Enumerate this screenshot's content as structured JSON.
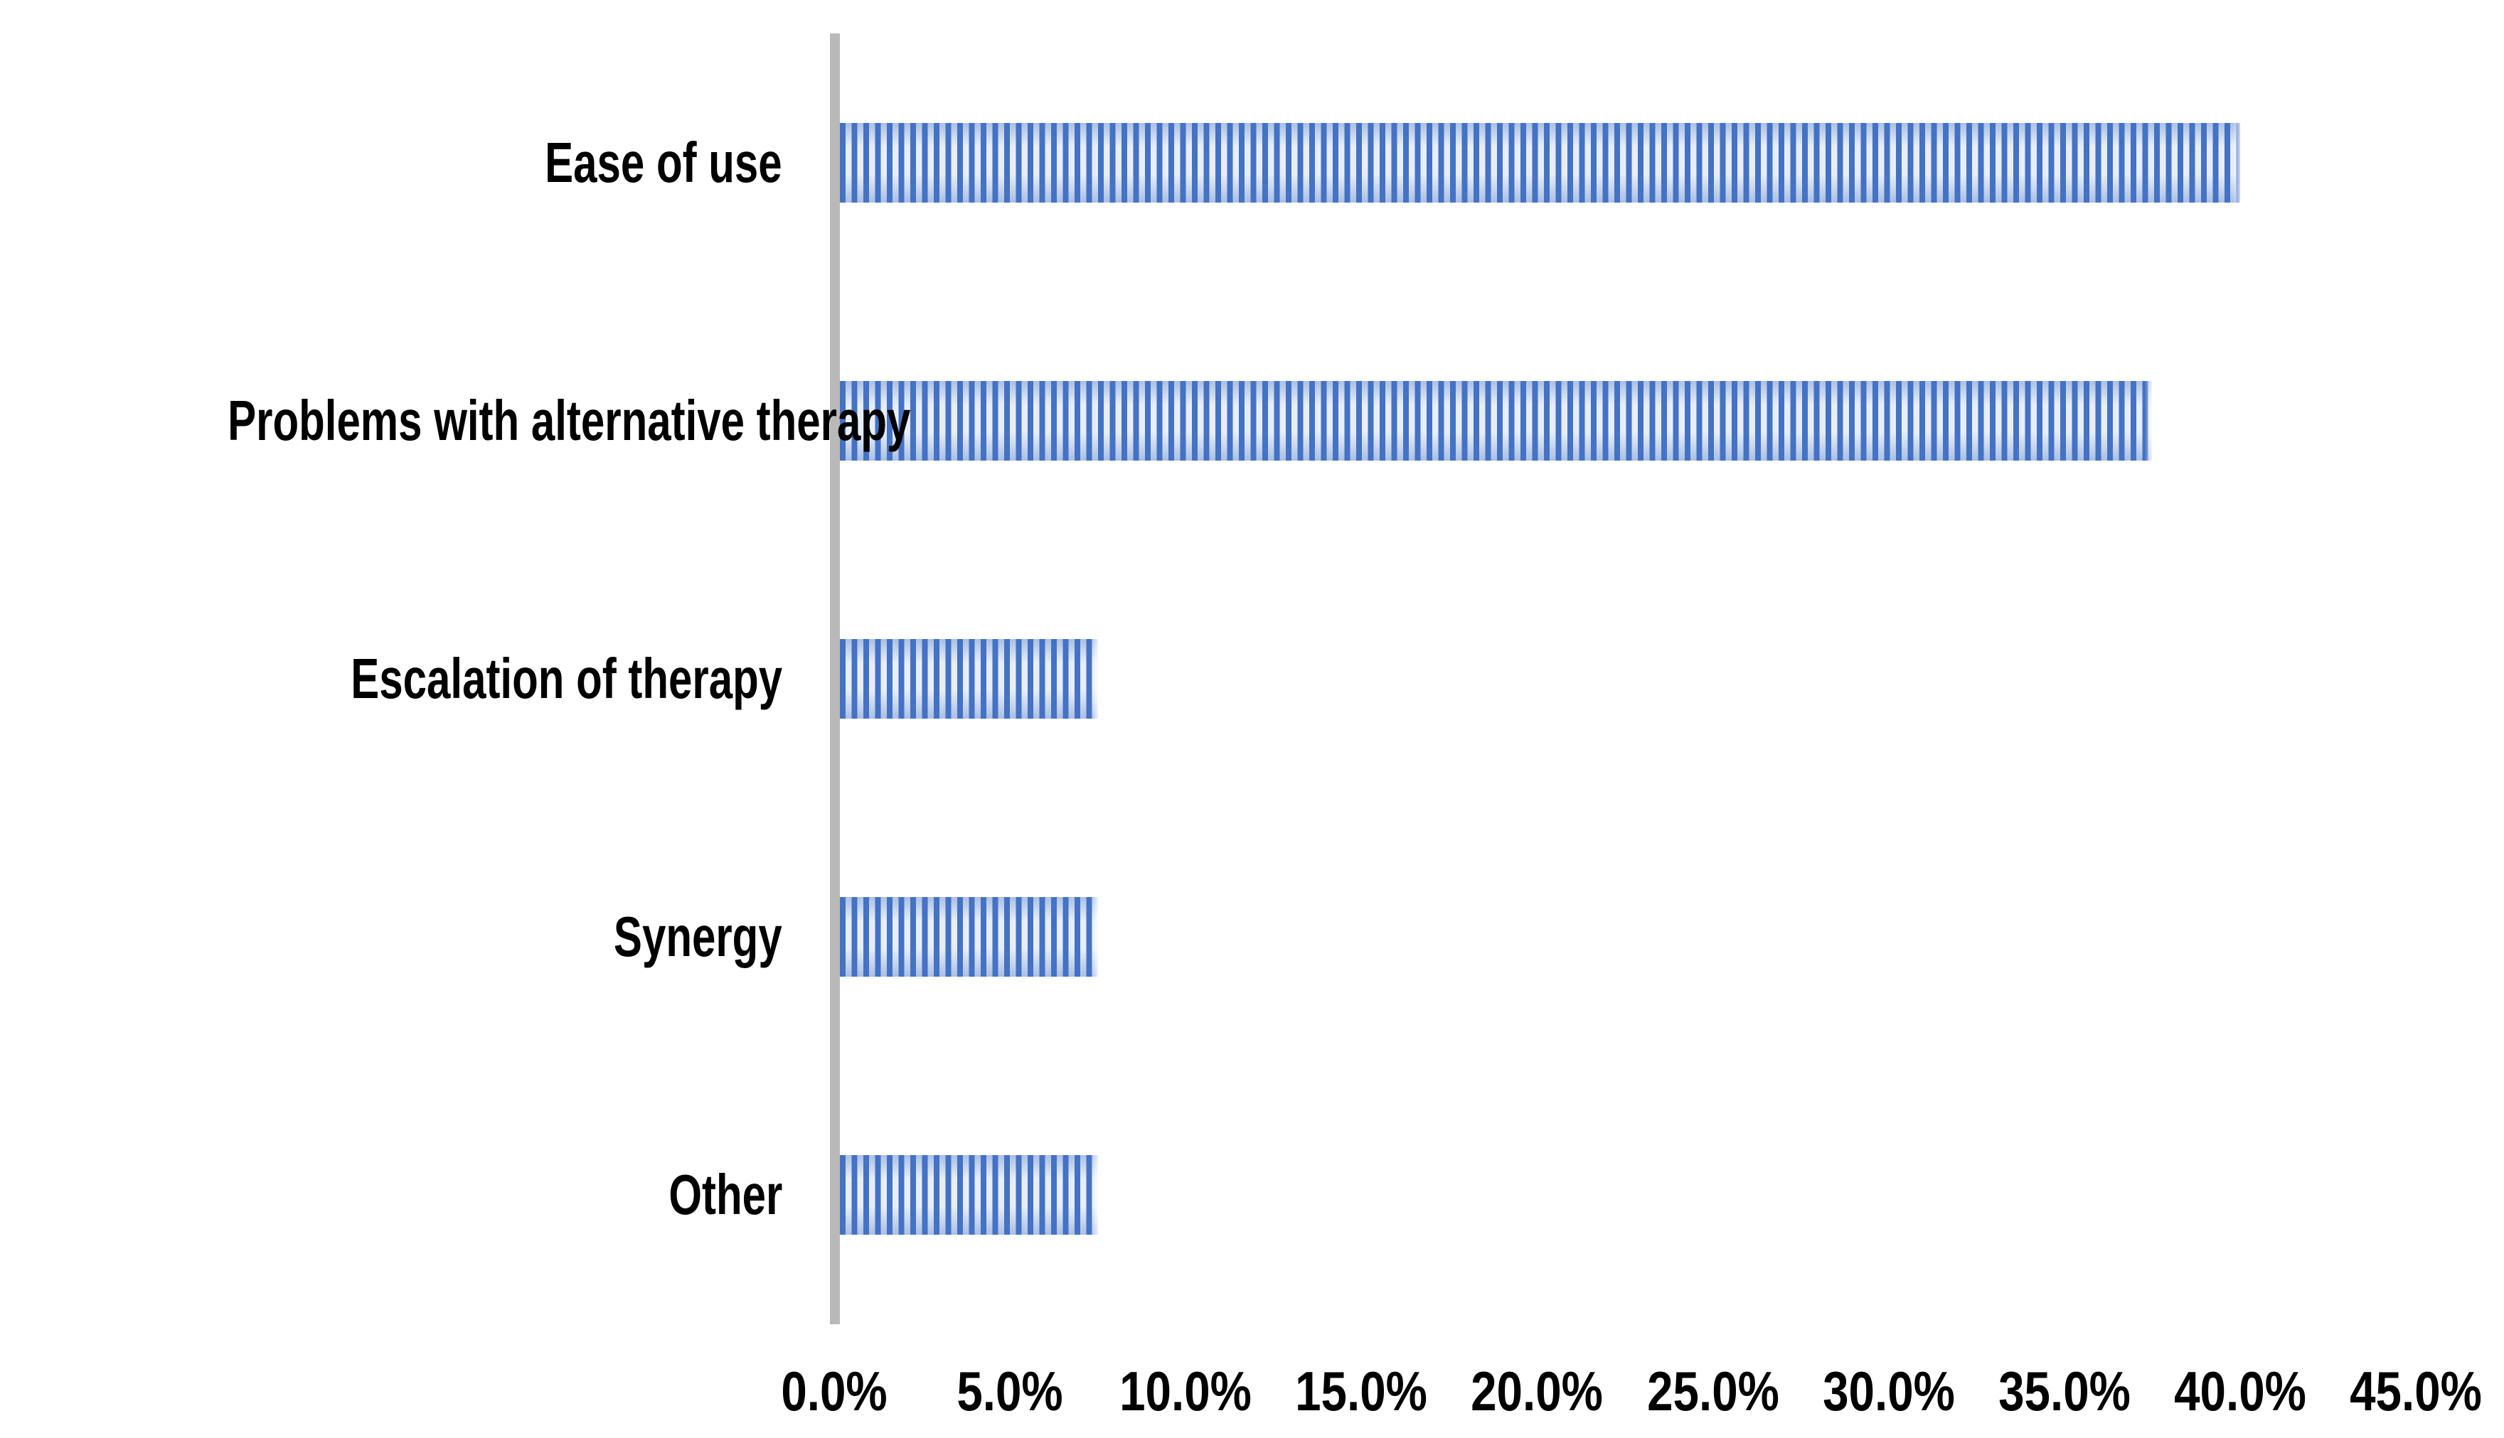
{
  "chart_data": {
    "type": "bar",
    "orientation": "horizontal",
    "title": "",
    "xlabel": "",
    "ylabel": "",
    "categories": [
      "Ease of use",
      "Problems with alternative therapy",
      "Escalation of therapy",
      "Synergy",
      "Other"
    ],
    "values": [
      40.0,
      37.5,
      7.5,
      7.5,
      7.5
    ],
    "value_unit": "%",
    "xlim": [
      0,
      45
    ],
    "xticks": [
      0,
      5,
      10,
      15,
      20,
      25,
      30,
      35,
      40,
      45
    ],
    "xtick_labels": [
      "0.0%",
      "5.0%",
      "10.0%",
      "15.0%",
      "20.0%",
      "25.0%",
      "30.0%",
      "35.0%",
      "40.0%",
      "45.0%"
    ],
    "grid": false,
    "legend": null,
    "colors": {
      "bar_stripe": "#4472c4",
      "bar_gap_mid": "#e8eef9",
      "bar_gap_edge": "#a9bfe4",
      "axis_line": "#b9b9b9",
      "text": "#000000",
      "background": "#ffffff"
    },
    "bar_pattern": "vertical-stripes"
  }
}
